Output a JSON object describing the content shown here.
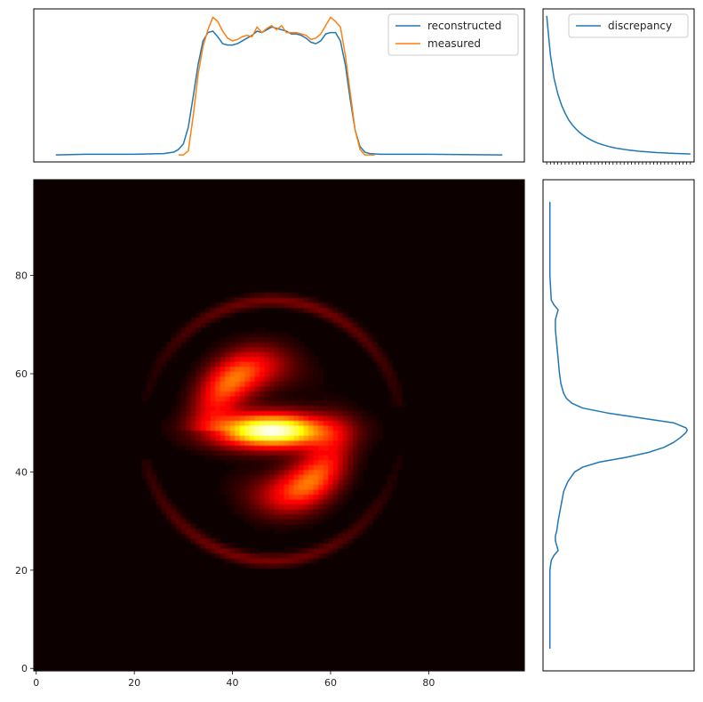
{
  "chart_data": [
    {
      "type": "line",
      "panel": "top-profile",
      "xlim": [
        -0.5,
        99.5
      ],
      "ylim": [
        -0.05,
        1.05
      ],
      "x_ticks_shown": false,
      "y_ticks_shown": false,
      "legend": {
        "position": "top-right"
      },
      "series": [
        {
          "name": "reconstructed",
          "color": "#1f77b4",
          "x": [
            4,
            10,
            20,
            26,
            28,
            29,
            30,
            31,
            32,
            33,
            34,
            35,
            36,
            37,
            38,
            39,
            40,
            41,
            42,
            43,
            44,
            45,
            46,
            47,
            48,
            49,
            50,
            51,
            52,
            53,
            54,
            55,
            56,
            57,
            58,
            59,
            60,
            61,
            62,
            63,
            64,
            65,
            66,
            67,
            68,
            70,
            80,
            95
          ],
          "y": [
            0.0,
            0.005,
            0.005,
            0.01,
            0.02,
            0.04,
            0.08,
            0.2,
            0.42,
            0.65,
            0.82,
            0.88,
            0.89,
            0.85,
            0.8,
            0.79,
            0.79,
            0.8,
            0.82,
            0.84,
            0.86,
            0.89,
            0.88,
            0.9,
            0.92,
            0.91,
            0.9,
            0.89,
            0.87,
            0.87,
            0.86,
            0.84,
            0.81,
            0.8,
            0.82,
            0.87,
            0.88,
            0.88,
            0.82,
            0.65,
            0.4,
            0.18,
            0.06,
            0.02,
            0.01,
            0.005,
            0.005,
            0.0
          ]
        },
        {
          "name": "measured",
          "color": "#ff7f0e",
          "x": [
            29,
            30,
            31,
            32,
            33,
            34,
            35,
            36,
            37,
            38,
            39,
            40,
            41,
            42,
            43,
            44,
            45,
            46,
            47,
            48,
            49,
            50,
            51,
            52,
            53,
            54,
            55,
            56,
            57,
            58,
            59,
            60,
            61,
            62,
            63,
            64,
            65,
            66,
            67,
            68,
            69
          ],
          "y": [
            0.0,
            0.0,
            0.03,
            0.28,
            0.58,
            0.78,
            0.9,
            0.99,
            0.96,
            0.89,
            0.84,
            0.82,
            0.83,
            0.85,
            0.86,
            0.85,
            0.92,
            0.88,
            0.91,
            0.93,
            0.9,
            0.93,
            0.88,
            0.88,
            0.88,
            0.87,
            0.86,
            0.83,
            0.84,
            0.87,
            0.93,
            0.99,
            0.96,
            0.92,
            0.72,
            0.45,
            0.18,
            0.04,
            0.0,
            0.0,
            0.0
          ]
        }
      ]
    },
    {
      "type": "line",
      "panel": "top-right-discrepancy",
      "xlim": [
        -1,
        40
      ],
      "ylim": [
        -0.05,
        1.05
      ],
      "x_minor_ticks": [
        0,
        1,
        2,
        3,
        4,
        5,
        6,
        7,
        8,
        9,
        10,
        11,
        12,
        13,
        14,
        15,
        16,
        17,
        18,
        19,
        20,
        21,
        22,
        23,
        24,
        25,
        26,
        27,
        28,
        29,
        30,
        31,
        32,
        33,
        34,
        35,
        36,
        37,
        38,
        39
      ],
      "legend": {
        "position": "top-right"
      },
      "series": [
        {
          "name": "discrepancy",
          "color": "#1f77b4",
          "x": [
            0,
            1,
            2,
            3,
            4,
            5,
            6,
            7,
            8,
            9,
            10,
            11,
            12,
            13,
            14,
            15,
            16,
            17,
            18,
            19,
            20,
            21,
            22,
            23,
            24,
            25,
            26,
            27,
            28,
            29,
            30,
            31,
            32,
            33,
            34,
            35,
            36,
            37,
            38,
            39
          ],
          "y": [
            1.0,
            0.72,
            0.55,
            0.44,
            0.36,
            0.3,
            0.25,
            0.215,
            0.185,
            0.16,
            0.14,
            0.123,
            0.108,
            0.095,
            0.084,
            0.075,
            0.067,
            0.06,
            0.054,
            0.048,
            0.044,
            0.04,
            0.036,
            0.033,
            0.03,
            0.027,
            0.025,
            0.023,
            0.021,
            0.019,
            0.017,
            0.016,
            0.015,
            0.013,
            0.012,
            0.011,
            0.01,
            0.009,
            0.008,
            0.007
          ]
        }
      ]
    },
    {
      "type": "heatmap",
      "panel": "main-image",
      "colormap": "hot",
      "xlim": [
        -0.5,
        99.5
      ],
      "ylim": [
        -0.5,
        99.5
      ],
      "x_ticks": [
        0,
        20,
        40,
        60,
        80
      ],
      "y_ticks": [
        0,
        20,
        40,
        60,
        80
      ],
      "peak": {
        "x": 48,
        "y": 48.5
      },
      "shape": "S-shaped spiral with two thin outer arms"
    },
    {
      "type": "line",
      "panel": "right-profile",
      "orientation": "vertical",
      "xlim": [
        -0.05,
        1.05
      ],
      "ylim": [
        -0.5,
        99.5
      ],
      "x_ticks_shown": false,
      "y_ticks_shown": false,
      "series": [
        {
          "color": "#1f77b4",
          "y": [
            4,
            10,
            20,
            22,
            23,
            24,
            25,
            26,
            27,
            28,
            30,
            33,
            36,
            38,
            40,
            41,
            42,
            43,
            44,
            45,
            46,
            47,
            48,
            48.5,
            49,
            50,
            51,
            52,
            53,
            54,
            55,
            56,
            57,
            58,
            60,
            63,
            66,
            69,
            71,
            72,
            73,
            74,
            75,
            80,
            90,
            95
          ],
          "x": [
            0.0,
            0.0,
            0.0,
            0.01,
            0.03,
            0.06,
            0.05,
            0.04,
            0.04,
            0.05,
            0.06,
            0.08,
            0.1,
            0.13,
            0.18,
            0.24,
            0.36,
            0.56,
            0.72,
            0.83,
            0.9,
            0.95,
            0.99,
            1.0,
            0.99,
            0.9,
            0.66,
            0.42,
            0.24,
            0.16,
            0.12,
            0.1,
            0.09,
            0.08,
            0.07,
            0.06,
            0.05,
            0.04,
            0.04,
            0.05,
            0.06,
            0.03,
            0.01,
            0.0,
            0.0,
            0.0
          ]
        }
      ]
    }
  ]
}
